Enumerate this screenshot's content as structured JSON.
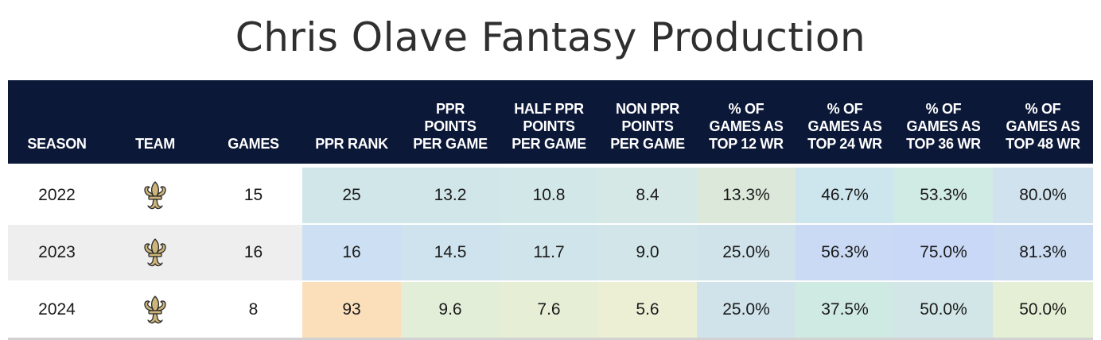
{
  "title": "Chris Olave Fantasy Production",
  "headers": [
    "SEASON",
    "TEAM",
    "GAMES",
    "PPR RANK",
    "PPR\nPOINTS\nPER GAME",
    "HALF PPR\nPOINTS\nPER GAME",
    "NON PPR\nPOINTS\nPER GAME",
    "% OF\nGAMES AS\nTOP 12 WR",
    "% OF\nGAMES AS\nTOP 24 WR",
    "% OF\nGAMES AS\nTOP 36 WR",
    "% OF\nGAMES AS\nTOP 48 WR"
  ],
  "rows": [
    {
      "season": "2022",
      "team_icon": "saints-fleur-de-lis-icon",
      "games": "15",
      "ppr_rank": "25",
      "ppr_ppg": "13.2",
      "half_ppr_ppg": "10.8",
      "non_ppr_ppg": "8.4",
      "top12": "13.3%",
      "top24": "46.7%",
      "top36": "53.3%",
      "top48": "80.0%"
    },
    {
      "season": "2023",
      "team_icon": "saints-fleur-de-lis-icon",
      "games": "16",
      "ppr_rank": "16",
      "ppr_ppg": "14.5",
      "half_ppr_ppg": "11.7",
      "non_ppr_ppg": "9.0",
      "top12": "25.0%",
      "top24": "56.3%",
      "top36": "75.0%",
      "top48": "81.3%"
    },
    {
      "season": "2024",
      "team_icon": "saints-fleur-de-lis-icon",
      "games": "8",
      "ppr_rank": "93",
      "ppr_ppg": "9.6",
      "half_ppr_ppg": "7.6",
      "non_ppr_ppg": "5.6",
      "top12": "25.0%",
      "top24": "37.5%",
      "top36": "50.0%",
      "top48": "50.0%"
    }
  ],
  "colors": {
    "header_bg": "#0c1838",
    "row_plain": [
      "#ffffff",
      "#eeeeee",
      "#ffffff"
    ],
    "cells": [
      [
        "#d0e6e9",
        "#d0e6e9",
        "#d2e7e7",
        "#d5e8e5",
        "#dce8d9",
        "#cde6ee",
        "#d0eae4",
        "#cfe2ee"
      ],
      [
        "#cddff2",
        "#cfe3ee",
        "#d0e5eb",
        "#d2e6e9",
        "#d1e3ea",
        "#cad9f4",
        "#c9d8f6",
        "#cbdcf2"
      ],
      [
        "#fbdeba",
        "#e2eed8",
        "#e7eed6",
        "#ecefd4",
        "#d1e3ea",
        "#cfeae3",
        "#d2e6e7",
        "#e4efd5"
      ]
    ]
  }
}
